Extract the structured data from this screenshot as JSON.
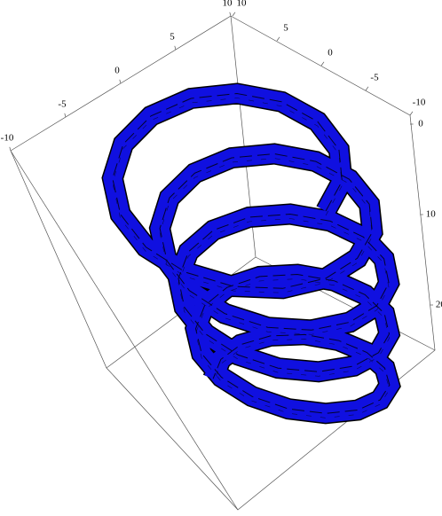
{
  "chart_data": {
    "type": "parametric3d",
    "xticks": [
      -10,
      -5,
      0,
      5,
      10
    ],
    "yticks": [
      10,
      5,
      0,
      -5,
      -10
    ],
    "zticks": [
      0,
      10,
      20
    ],
    "color": "#1010e0"
  }
}
